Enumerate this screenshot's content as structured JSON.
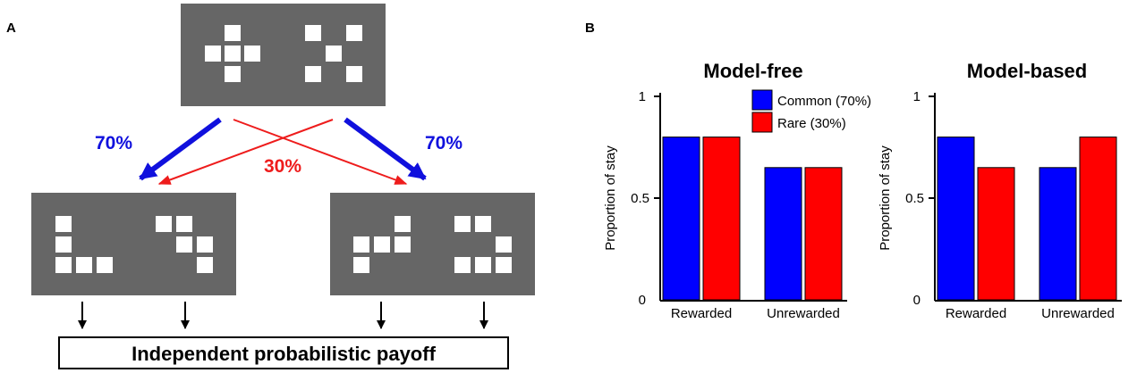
{
  "panel_a": {
    "label": "A",
    "left_prob_label": "70%",
    "right_prob_label": "70%",
    "rare_prob_label": "30%",
    "payoff_label": "Independent probabilistic payoff",
    "colors": {
      "common": "#1010dd",
      "rare": "#ee1c1c",
      "stimulus_bg": "#666666",
      "tile": "#ffffff"
    }
  },
  "panel_b": {
    "label": "B"
  },
  "chart_data": [
    {
      "type": "bar",
      "title": "Model-free",
      "ylabel": "Proportion of stay",
      "yticks": [
        "0",
        "0.5",
        "1"
      ],
      "ylim": [
        0,
        1
      ],
      "categories": [
        "Rewarded",
        "Unrewarded"
      ],
      "series": [
        {
          "name": "Common (70%)",
          "color": "#0000ff",
          "values": [
            0.8,
            0.65
          ]
        },
        {
          "name": "Rare (30%)",
          "color": "#ff0000",
          "values": [
            0.8,
            0.65
          ]
        }
      ],
      "legend": "top-right"
    },
    {
      "type": "bar",
      "title": "Model-based",
      "ylabel": "Proportion of stay",
      "yticks": [
        "0",
        "0.5",
        "1"
      ],
      "ylim": [
        0,
        1
      ],
      "categories": [
        "Rewarded",
        "Unrewarded"
      ],
      "series": [
        {
          "name": "Common (70%)",
          "color": "#0000ff",
          "values": [
            0.8,
            0.65
          ]
        },
        {
          "name": "Rare (30%)",
          "color": "#ff0000",
          "values": [
            0.65,
            0.8
          ]
        }
      ]
    }
  ]
}
